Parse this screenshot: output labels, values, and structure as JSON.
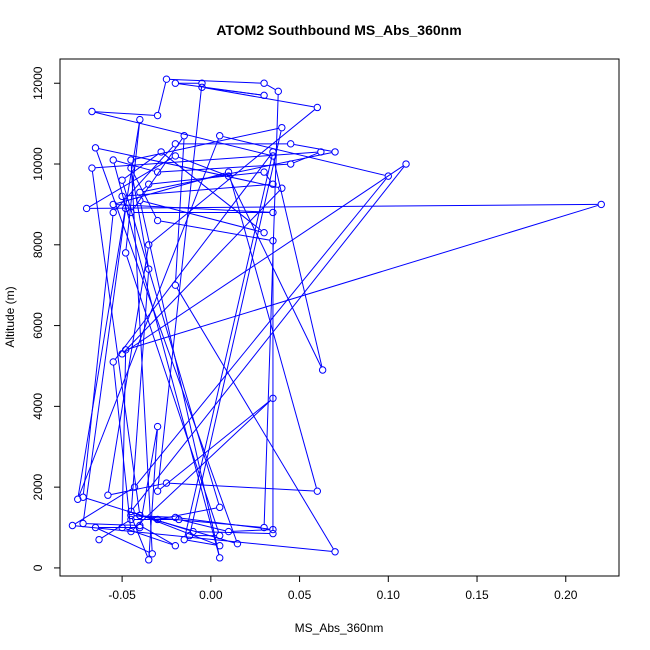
{
  "chart_data": {
    "type": "line",
    "title": "ATOM2 Southbound MS_Abs_360nm",
    "xlabel": "MS_Abs_360nm",
    "ylabel": "Altitude (m)",
    "xlim": [
      -0.085,
      0.23
    ],
    "ylim": [
      -200,
      12600
    ],
    "x_ticks": [
      -0.05,
      0.0,
      0.05,
      0.1,
      0.15,
      0.2
    ],
    "x_tick_labels": [
      "-0.05",
      "0.00",
      "0.05",
      "0.10",
      "0.15",
      "0.20"
    ],
    "y_ticks": [
      0,
      2000,
      4000,
      6000,
      8000,
      10000,
      12000
    ],
    "y_tick_labels": [
      "0",
      "2000",
      "4000",
      "6000",
      "8000",
      "10000",
      "12000"
    ],
    "series_color": "#0000ff",
    "marker": "open-circle",
    "points": [
      {
        "x": -0.063,
        "y": 700
      },
      {
        "x": -0.045,
        "y": 1200
      },
      {
        "x": -0.018,
        "y": 1200
      },
      {
        "x": 0.01,
        "y": 900
      },
      {
        "x": 0.035,
        "y": 950
      },
      {
        "x": -0.02,
        "y": 1250
      },
      {
        "x": -0.045,
        "y": 1300
      },
      {
        "x": -0.035,
        "y": 7400
      },
      {
        "x": -0.045,
        "y": 9900
      },
      {
        "x": -0.03,
        "y": 8600
      },
      {
        "x": 0.035,
        "y": 8100
      },
      {
        "x": 0.035,
        "y": 850
      },
      {
        "x": -0.01,
        "y": 900
      },
      {
        "x": -0.072,
        "y": 1750
      },
      {
        "x": -0.055,
        "y": 8800
      },
      {
        "x": -0.02,
        "y": 10500
      },
      {
        "x": 0.045,
        "y": 10500
      },
      {
        "x": 0.07,
        "y": 10300
      },
      {
        "x": -0.04,
        "y": 9300
      },
      {
        "x": -0.035,
        "y": 9500
      },
      {
        "x": 0.03,
        "y": 9800
      },
      {
        "x": 0.035,
        "y": 9500
      },
      {
        "x": -0.05,
        "y": 9200
      },
      {
        "x": -0.048,
        "y": 8900
      },
      {
        "x": -0.072,
        "y": 1100
      },
      {
        "x": -0.04,
        "y": 1050
      },
      {
        "x": -0.02,
        "y": 550
      },
      {
        "x": -0.05,
        "y": 1000
      },
      {
        "x": -0.048,
        "y": 5400
      },
      {
        "x": 0.22,
        "y": 9000
      },
      {
        "x": -0.07,
        "y": 8900
      },
      {
        "x": -0.02,
        "y": 10200
      },
      {
        "x": 0.01,
        "y": 9700
      },
      {
        "x": 0.063,
        "y": 4900
      },
      {
        "x": 0.035,
        "y": 10200
      },
      {
        "x": -0.067,
        "y": 11300
      },
      {
        "x": -0.03,
        "y": 11200
      },
      {
        "x": -0.025,
        "y": 12100
      },
      {
        "x": 0.03,
        "y": 12000
      },
      {
        "x": 0.038,
        "y": 11800
      },
      {
        "x": 0.03,
        "y": 1000
      },
      {
        "x": -0.045,
        "y": 1300
      },
      {
        "x": -0.035,
        "y": 200
      },
      {
        "x": -0.03,
        "y": 3500
      },
      {
        "x": -0.04,
        "y": 1000
      },
      {
        "x": -0.065,
        "y": 1000
      },
      {
        "x": -0.033,
        "y": 350
      },
      {
        "x": -0.045,
        "y": 10100
      },
      {
        "x": 0.04,
        "y": 10900
      },
      {
        "x": -0.012,
        "y": 800
      },
      {
        "x": 0.005,
        "y": 800
      },
      {
        "x": -0.048,
        "y": 7800
      },
      {
        "x": -0.04,
        "y": 11100
      },
      {
        "x": -0.075,
        "y": 1700
      },
      {
        "x": 0.005,
        "y": 10700
      },
      {
        "x": 0.1,
        "y": 9700
      },
      {
        "x": -0.043,
        "y": 2000
      },
      {
        "x": -0.078,
        "y": 1050
      },
      {
        "x": 0.07,
        "y": 400
      },
      {
        "x": -0.02,
        "y": 7000
      },
      {
        "x": -0.015,
        "y": 10700
      },
      {
        "x": -0.045,
        "y": 8800
      },
      {
        "x": 0.035,
        "y": 8800
      },
      {
        "x": -0.055,
        "y": 9000
      },
      {
        "x": 0.01,
        "y": 9800
      },
      {
        "x": 0.06,
        "y": 1900
      },
      {
        "x": -0.025,
        "y": 2100
      },
      {
        "x": -0.058,
        "y": 1800
      },
      {
        "x": -0.035,
        "y": 8000
      },
      {
        "x": 0.06,
        "y": 11400
      },
      {
        "x": -0.005,
        "y": 11900
      },
      {
        "x": 0.03,
        "y": 11700
      },
      {
        "x": -0.02,
        "y": 12000
      },
      {
        "x": -0.005,
        "y": 12000
      },
      {
        "x": -0.03,
        "y": 1900
      },
      {
        "x": 0.035,
        "y": 4200
      },
      {
        "x": -0.045,
        "y": 900
      },
      {
        "x": -0.055,
        "y": 5100
      },
      {
        "x": 0.035,
        "y": 10300
      },
      {
        "x": -0.015,
        "y": 700
      },
      {
        "x": 0.005,
        "y": 550
      },
      {
        "x": -0.045,
        "y": 1400
      },
      {
        "x": 0.11,
        "y": 10000
      },
      {
        "x": -0.05,
        "y": 5300
      },
      {
        "x": 0.04,
        "y": 9400
      },
      {
        "x": -0.065,
        "y": 10400
      },
      {
        "x": 0.015,
        "y": 600
      },
      {
        "x": -0.04,
        "y": 1300
      },
      {
        "x": -0.03,
        "y": 1200
      },
      {
        "x": 0.005,
        "y": 1500
      },
      {
        "x": -0.05,
        "y": 9600
      },
      {
        "x": -0.028,
        "y": 10300
      },
      {
        "x": 0.03,
        "y": 8300
      },
      {
        "x": -0.04,
        "y": 9100
      },
      {
        "x": 0.005,
        "y": 250
      },
      {
        "x": -0.055,
        "y": 10100
      },
      {
        "x": -0.03,
        "y": 9800
      },
      {
        "x": 0.045,
        "y": 10000
      },
      {
        "x": 0.062,
        "y": 10300
      },
      {
        "x": -0.067,
        "y": 9900
      },
      {
        "x": -0.04,
        "y": 1300
      }
    ]
  }
}
